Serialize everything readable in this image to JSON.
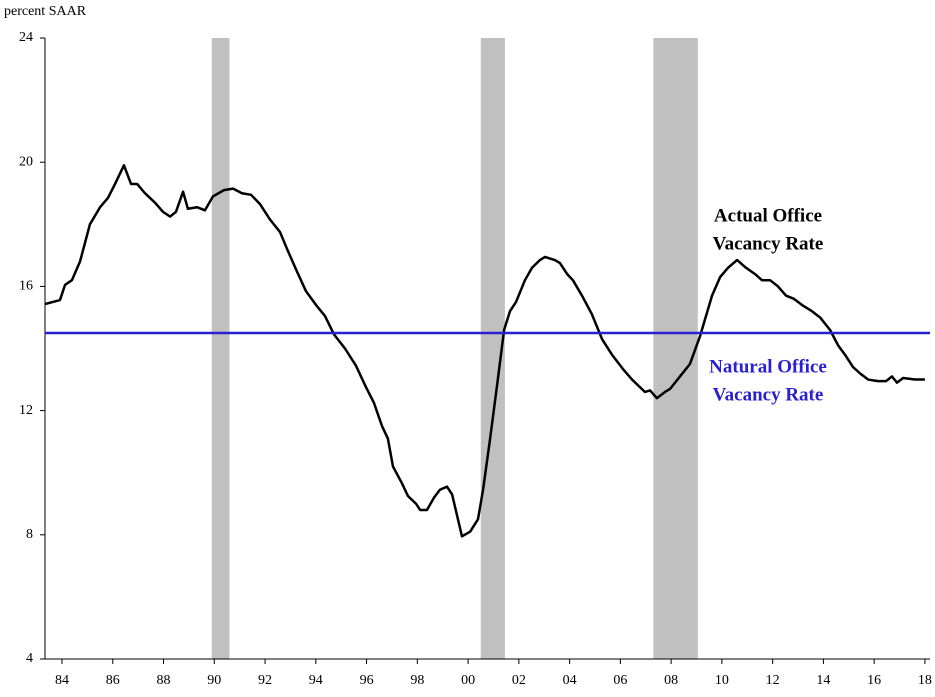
{
  "chart_data": {
    "type": "line",
    "y_label": "percent SAAR",
    "xlim": [
      1983.33,
      2018.2
    ],
    "ylim": [
      4,
      24
    ],
    "xticks": [
      {
        "value": 1984,
        "label": "84"
      },
      {
        "value": 1986,
        "label": "86"
      },
      {
        "value": 1988,
        "label": "88"
      },
      {
        "value": 1990,
        "label": "90"
      },
      {
        "value": 1992,
        "label": "92"
      },
      {
        "value": 1994,
        "label": "94"
      },
      {
        "value": 1996,
        "label": "96"
      },
      {
        "value": 1998,
        "label": "98"
      },
      {
        "value": 2000,
        "label": "00"
      },
      {
        "value": 2002,
        "label": "02"
      },
      {
        "value": 2004,
        "label": "04"
      },
      {
        "value": 2006,
        "label": "06"
      },
      {
        "value": 2008,
        "label": "08"
      },
      {
        "value": 2010,
        "label": "10"
      },
      {
        "value": 2012,
        "label": "12"
      },
      {
        "value": 2014,
        "label": "14"
      },
      {
        "value": 2016,
        "label": "16"
      },
      {
        "value": 2018,
        "label": "18"
      }
    ],
    "yticks": [
      4,
      8,
      12,
      16,
      20,
      24
    ],
    "grid": false,
    "shaded_periods": [
      [
        1989.9,
        1990.6
      ],
      [
        2000.5,
        2001.45
      ],
      [
        2007.3,
        2009.05
      ]
    ],
    "shade_color": "#c0c0c0",
    "series": [
      {
        "name": "Actual Office Vacancy Rate",
        "color": "#000000",
        "label_lines": [
          "Actual Office",
          "Vacancy Rate"
        ],
        "x": [
          1983.33,
          1983.92,
          1984.12,
          1984.39,
          1984.71,
          1985.1,
          1985.5,
          1985.81,
          1986.09,
          1986.44,
          1986.72,
          1986.96,
          1987.27,
          1987.66,
          1987.98,
          1988.26,
          1988.49,
          1988.77,
          1988.96,
          1989.32,
          1989.63,
          1989.95,
          1990.38,
          1990.74,
          1991.09,
          1991.45,
          1991.8,
          1992.2,
          1992.59,
          1992.87,
          1993.22,
          1993.61,
          1994.01,
          1994.36,
          1994.72,
          1995.15,
          1995.58,
          1995.98,
          1996.29,
          1996.61,
          1996.84,
          1997.04,
          1997.4,
          1997.63,
          1997.95,
          1998.11,
          1998.38,
          1998.66,
          1998.89,
          1999.17,
          1999.37,
          1999.76,
          2000.08,
          2000.39,
          2000.59,
          2000.86,
          2001.14,
          2001.42,
          2001.65,
          2001.89,
          2002.24,
          2002.52,
          2002.83,
          2003.03,
          2003.42,
          2003.62,
          2003.9,
          2004.13,
          2004.49,
          2004.88,
          2005.28,
          2005.67,
          2006.14,
          2006.46,
          2006.97,
          2007.17,
          2007.44,
          2007.76,
          2007.96,
          2008.35,
          2008.74,
          2009.14,
          2009.61,
          2009.93,
          2010.24,
          2010.6,
          2010.95,
          2011.3,
          2011.58,
          2011.9,
          2012.21,
          2012.53,
          2012.84,
          2013.16,
          2013.55,
          2013.87,
          2014.26,
          2014.58,
          2014.85,
          2015.17,
          2015.44,
          2015.76,
          2016.15,
          2016.47,
          2016.7,
          2016.9,
          2017.14,
          2017.61,
          2018.0
        ],
        "values": [
          15.43,
          15.56,
          16.05,
          16.2,
          16.8,
          18.0,
          18.55,
          18.85,
          19.3,
          19.9,
          19.3,
          19.3,
          19.0,
          18.7,
          18.4,
          18.25,
          18.4,
          19.05,
          18.5,
          18.55,
          18.45,
          18.9,
          19.1,
          19.15,
          19.0,
          18.95,
          18.65,
          18.15,
          17.75,
          17.2,
          16.55,
          15.85,
          15.4,
          15.05,
          14.45,
          14.0,
          13.45,
          12.75,
          12.25,
          11.5,
          11.1,
          10.2,
          9.65,
          9.25,
          9.0,
          8.8,
          8.8,
          9.2,
          9.45,
          9.55,
          9.3,
          7.95,
          8.1,
          8.5,
          9.45,
          11.05,
          12.8,
          14.6,
          15.2,
          15.5,
          16.2,
          16.6,
          16.85,
          16.95,
          16.85,
          16.75,
          16.4,
          16.2,
          15.7,
          15.1,
          14.3,
          13.8,
          13.3,
          13.0,
          12.6,
          12.65,
          12.4,
          12.6,
          12.7,
          13.1,
          13.5,
          14.4,
          15.7,
          16.3,
          16.6,
          16.85,
          16.6,
          16.4,
          16.2,
          16.2,
          16.0,
          15.7,
          15.6,
          15.4,
          15.2,
          15.0,
          14.6,
          14.1,
          13.8,
          13.4,
          13.2,
          13.0,
          12.95,
          12.95,
          13.1,
          12.9,
          13.05,
          13.0,
          13.0
        ]
      },
      {
        "name": "Natural Office Vacancy Rate",
        "color": "#2a1fd0",
        "label_lines": [
          "Natural Office",
          "Vacancy Rate"
        ],
        "x": [
          1983.33,
          2018.2
        ],
        "values": [
          14.5,
          14.5
        ]
      }
    ]
  }
}
